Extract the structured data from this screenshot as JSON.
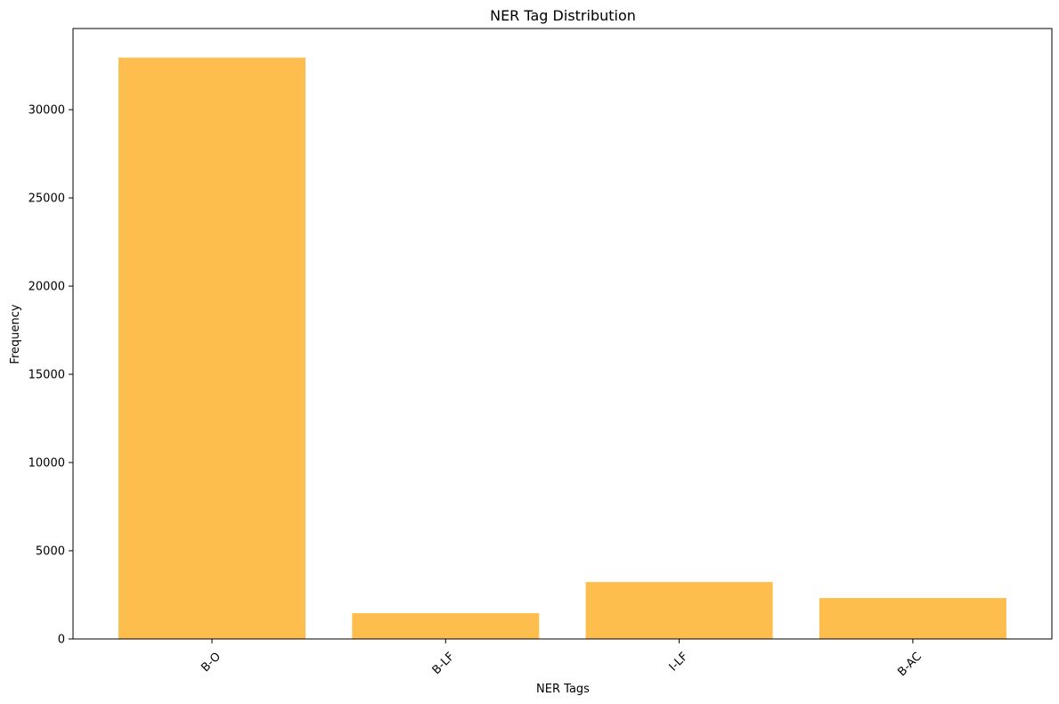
{
  "chart_data": {
    "type": "bar",
    "title": "NER Tag Distribution",
    "xlabel": "NER Tags",
    "ylabel": "Frequency",
    "categories": [
      "B-O",
      "B-LF",
      "I-LF",
      "B-AC"
    ],
    "values": [
      32950,
      1460,
      3230,
      2320
    ],
    "ylim": [
      0,
      34600
    ],
    "yticks": [
      0,
      5000,
      10000,
      15000,
      20000,
      25000,
      30000
    ],
    "bar_color": "#fdbe4d",
    "grid": false,
    "legend": "none",
    "xtick_rotation": 45
  }
}
